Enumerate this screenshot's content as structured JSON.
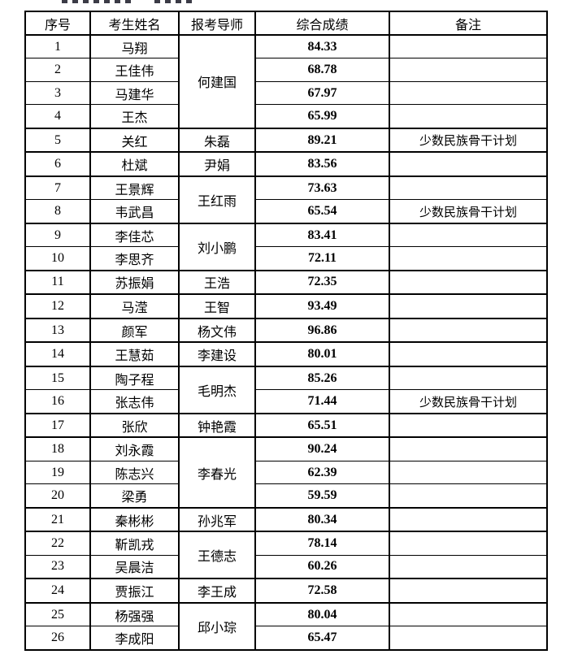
{
  "colors": {
    "background": "#ffffff",
    "border": "#000000",
    "text": "#000000"
  },
  "table": {
    "headers": [
      "序号",
      "考生姓名",
      "报考导师",
      "综合成绩",
      "备注"
    ],
    "rows": [
      {
        "no": "1",
        "name": "马翔",
        "advisor": "何建国",
        "advisor_rowspan": 4,
        "score": "84.33",
        "note": "",
        "group_end": false
      },
      {
        "no": "2",
        "name": "王佳伟",
        "score": "68.78",
        "note": "",
        "group_end": false
      },
      {
        "no": "3",
        "name": "马建华",
        "score": "67.97",
        "note": "",
        "group_end": false
      },
      {
        "no": "4",
        "name": "王杰",
        "score": "65.99",
        "note": "",
        "group_end": true
      },
      {
        "no": "5",
        "name": "关红",
        "advisor": "朱磊",
        "advisor_rowspan": 1,
        "score": "89.21",
        "note": "少数民族骨干计划",
        "group_end": true
      },
      {
        "no": "6",
        "name": "杜斌",
        "advisor": "尹娟",
        "advisor_rowspan": 1,
        "score": "83.56",
        "note": "",
        "group_end": true
      },
      {
        "no": "7",
        "name": "王景辉",
        "advisor": "王红雨",
        "advisor_rowspan": 2,
        "score": "73.63",
        "note": "",
        "group_end": false
      },
      {
        "no": "8",
        "name": "韦武昌",
        "score": "65.54",
        "note": "少数民族骨干计划",
        "group_end": true
      },
      {
        "no": "9",
        "name": "李佳芯",
        "advisor": "刘小鹏",
        "advisor_rowspan": 2,
        "score": "83.41",
        "note": "",
        "group_end": false
      },
      {
        "no": "10",
        "name": "李思齐",
        "score": "72.11",
        "note": "",
        "group_end": true
      },
      {
        "no": "11",
        "name": "苏振娟",
        "advisor": "王浩",
        "advisor_rowspan": 1,
        "score": "72.35",
        "note": "",
        "group_end": true
      },
      {
        "no": "12",
        "name": "马滢",
        "advisor": "王智",
        "advisor_rowspan": 1,
        "score": "93.49",
        "note": "",
        "group_end": true
      },
      {
        "no": "13",
        "name": "颜军",
        "advisor": "杨文伟",
        "advisor_rowspan": 1,
        "score": "96.86",
        "note": "",
        "group_end": true
      },
      {
        "no": "14",
        "name": "王慧茹",
        "advisor": "李建设",
        "advisor_rowspan": 1,
        "score": "80.01",
        "note": "",
        "group_end": true
      },
      {
        "no": "15",
        "name": "陶子程",
        "advisor": "毛明杰",
        "advisor_rowspan": 2,
        "score": "85.26",
        "note": "",
        "group_end": false
      },
      {
        "no": "16",
        "name": "张志伟",
        "score": "71.44",
        "note": "少数民族骨干计划",
        "group_end": true
      },
      {
        "no": "17",
        "name": "张欣",
        "advisor": "钟艳霞",
        "advisor_rowspan": 1,
        "score": "65.51",
        "note": "",
        "group_end": true
      },
      {
        "no": "18",
        "name": "刘永霞",
        "advisor": "李春光",
        "advisor_rowspan": 3,
        "score": "90.24",
        "note": "",
        "group_end": false
      },
      {
        "no": "19",
        "name": "陈志兴",
        "score": "62.39",
        "note": "",
        "group_end": false
      },
      {
        "no": "20",
        "name": "梁勇",
        "score": "59.59",
        "note": "",
        "group_end": true
      },
      {
        "no": "21",
        "name": "秦彬彬",
        "advisor": "孙兆军",
        "advisor_rowspan": 1,
        "score": "80.34",
        "note": "",
        "group_end": true
      },
      {
        "no": "22",
        "name": "靳凯戎",
        "advisor": "王德志",
        "advisor_rowspan": 2,
        "score": "78.14",
        "note": "",
        "group_end": false
      },
      {
        "no": "23",
        "name": "吴晨洁",
        "score": "60.26",
        "note": "",
        "group_end": true
      },
      {
        "no": "24",
        "name": "贾振江",
        "advisor": "李王成",
        "advisor_rowspan": 1,
        "score": "72.58",
        "note": "",
        "group_end": true
      },
      {
        "no": "25",
        "name": "杨强强",
        "advisor": "邱小琮",
        "advisor_rowspan": 2,
        "score": "80.04",
        "note": "",
        "group_end": false
      },
      {
        "no": "26",
        "name": "李成阳",
        "score": "65.47",
        "note": "",
        "group_end": true
      }
    ]
  }
}
